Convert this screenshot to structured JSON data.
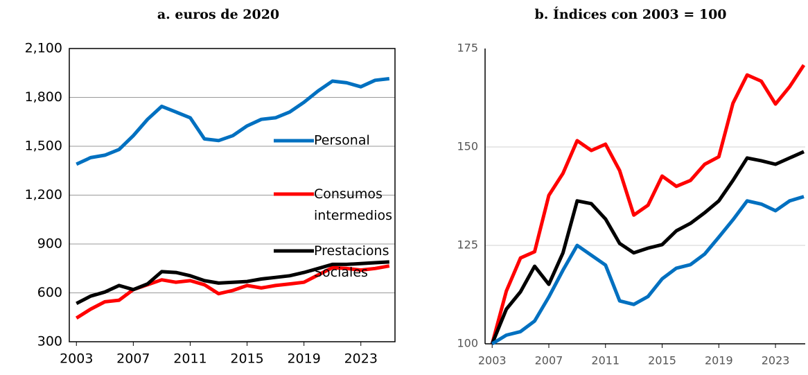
{
  "chart_data": [
    {
      "type": "line",
      "title": "a. euros de 2020",
      "x": [
        2003,
        2004,
        2005,
        2006,
        2007,
        2008,
        2009,
        2010,
        2011,
        2012,
        2013,
        2014,
        2015,
        2016,
        2017,
        2018,
        2019,
        2020,
        2021,
        2022,
        2023,
        2024,
        2025
      ],
      "xlim": [
        2002.5,
        2025.4
      ],
      "xticks": [
        2003,
        2007,
        2011,
        2015,
        2019,
        2023
      ],
      "ylim": [
        300,
        2100
      ],
      "yticks": [
        300,
        600,
        900,
        {
          "value": 1200,
          "label": "1,200"
        },
        {
          "value": 1500,
          "label": "1,500"
        },
        {
          "value": 1800,
          "label": "1,800"
        },
        {
          "value": 2100,
          "label": "2,100"
        }
      ],
      "grid": true,
      "legend": "inside-right",
      "series": [
        {
          "name": "Personal",
          "color": "#0070c0",
          "values": [
            1390,
            1430,
            1445,
            1480,
            1565,
            1665,
            1745,
            1710,
            1675,
            1545,
            1535,
            1565,
            1625,
            1665,
            1675,
            1710,
            1770,
            1840,
            1900,
            1890,
            1865,
            1905,
            1915
          ]
        },
        {
          "name": "Consumos intermedios",
          "color": "#ff0000",
          "values": [
            445,
            500,
            545,
            555,
            620,
            650,
            680,
            665,
            675,
            650,
            595,
            615,
            645,
            630,
            645,
            655,
            665,
            710,
            755,
            750,
            740,
            750,
            765
          ]
        },
        {
          "name": "Prestacions Sociales",
          "color": "#000000",
          "values": [
            535,
            580,
            605,
            645,
            620,
            655,
            730,
            725,
            705,
            675,
            660,
            665,
            670,
            685,
            695,
            705,
            725,
            750,
            775,
            775,
            780,
            785,
            790
          ]
        }
      ]
    },
    {
      "type": "line",
      "title": "b. Índices con 2003 = 100",
      "x": [
        2003,
        2004,
        2005,
        2006,
        2007,
        2008,
        2009,
        2010,
        2011,
        2012,
        2013,
        2014,
        2015,
        2016,
        2017,
        2018,
        2019,
        2020,
        2021,
        2022,
        2023,
        2024,
        2025
      ],
      "xlim": [
        2002.5,
        2025.1
      ],
      "xticks": [
        2003,
        2007,
        2011,
        2015,
        2019,
        2023
      ],
      "ylim": [
        100,
        175
      ],
      "yticks": [
        100,
        125,
        150,
        175
      ],
      "grid": true,
      "series": [
        {
          "color": "#ff0000",
          "values": [
            100,
            113.4,
            121.8,
            123.4,
            137.7,
            143.3,
            151.6,
            149.1,
            150.7,
            144.0,
            132.7,
            135.2,
            142.6,
            140.0,
            141.5,
            145.6,
            147.5,
            161.1,
            168.3,
            166.7,
            160.9,
            165.3,
            170.8
          ]
        },
        {
          "color": "#000000",
          "values": [
            100,
            108.8,
            113.2,
            119.7,
            115.1,
            123.1,
            136.3,
            135.6,
            131.7,
            125.5,
            123.1,
            124.3,
            125.2,
            128.7,
            130.6,
            133.3,
            136.3,
            141.5,
            147.2,
            146.5,
            145.6,
            147.2,
            148.8
          ]
        },
        {
          "color": "#0070c0",
          "values": [
            100,
            102.2,
            103.1,
            105.8,
            111.9,
            118.7,
            125.0,
            122.5,
            120.0,
            110.9,
            110.0,
            112.0,
            116.5,
            119.2,
            120.1,
            122.8,
            127.1,
            131.5,
            136.3,
            135.5,
            133.8,
            136.3,
            137.4
          ]
        }
      ]
    }
  ]
}
